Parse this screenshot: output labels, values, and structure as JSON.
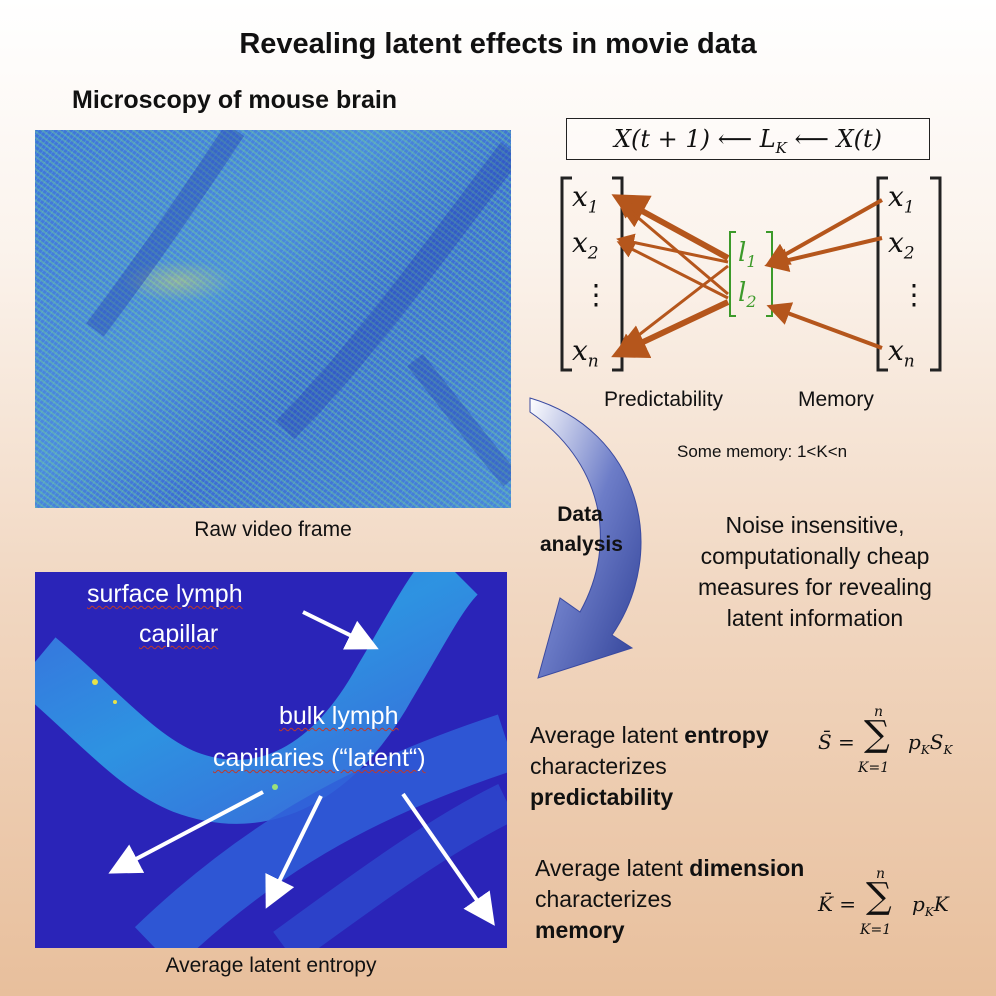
{
  "title": "Revealing latent effects in movie data",
  "subtitle": "Microscopy of mouse brain",
  "raw_caption": "Raw video frame",
  "entropy_caption": "Average latent entropy",
  "entropy_labels": {
    "surface_line1": "surface lymph",
    "surface_line2": "capillar",
    "bulk_line1": "bulk lymph",
    "bulk_line2": "capillaries (“latent“)"
  },
  "equation": {
    "left": "X(t + 1)",
    "arrow1": "⟵",
    "middle": "L",
    "middle_sub": "K",
    "arrow2": "⟵",
    "right": "X(t)"
  },
  "diagram": {
    "left_vector": [
      "x",
      "x",
      "⋮",
      "x"
    ],
    "left_subs": [
      "1",
      "2",
      "",
      "n"
    ],
    "right_vector": [
      "x",
      "x",
      "⋮",
      "x"
    ],
    "right_subs": [
      "1",
      "2",
      "",
      "n"
    ],
    "latent": [
      "l",
      "l"
    ],
    "latent_subs": [
      "1",
      "2"
    ],
    "arrow_color": "#b5561c",
    "latent_color": "#3c9a2a"
  },
  "predictability_label": "Predictability",
  "memory_label": "Memory",
  "some_memory": "Some memory: 1<K<n",
  "data_analysis_line1": "Data",
  "data_analysis_line2": "analysis",
  "noise_text": [
    "Noise insensitive,",
    "computationally cheap",
    "measures for revealing",
    "latent information"
  ],
  "entropy_measure": {
    "line1_pre": "Average latent ",
    "line1_bold": "entropy",
    "line2": "characterizes",
    "line3_bold": "predictability"
  },
  "dimension_measure": {
    "line1_pre": "Average latent ",
    "line1_bold": "dimension",
    "line2": "characterizes",
    "line3_bold": "memory"
  },
  "formula_S": {
    "lhs": "S̄ =",
    "sum": "∑",
    "top": "n",
    "bottom": "K=1",
    "term": "p",
    "term_sub": "K",
    "term2": "S",
    "term2_sub": "K"
  },
  "formula_K": {
    "lhs": "K̄ =",
    "sum": "∑",
    "top": "n",
    "bottom": "K=1",
    "term": "p",
    "term_sub": "K",
    "term2": "K"
  },
  "colors": {
    "curved_arrow": "#2e3f96",
    "entropy_bg": "#2a24b8",
    "raw_bg": "#4a7fd8"
  }
}
